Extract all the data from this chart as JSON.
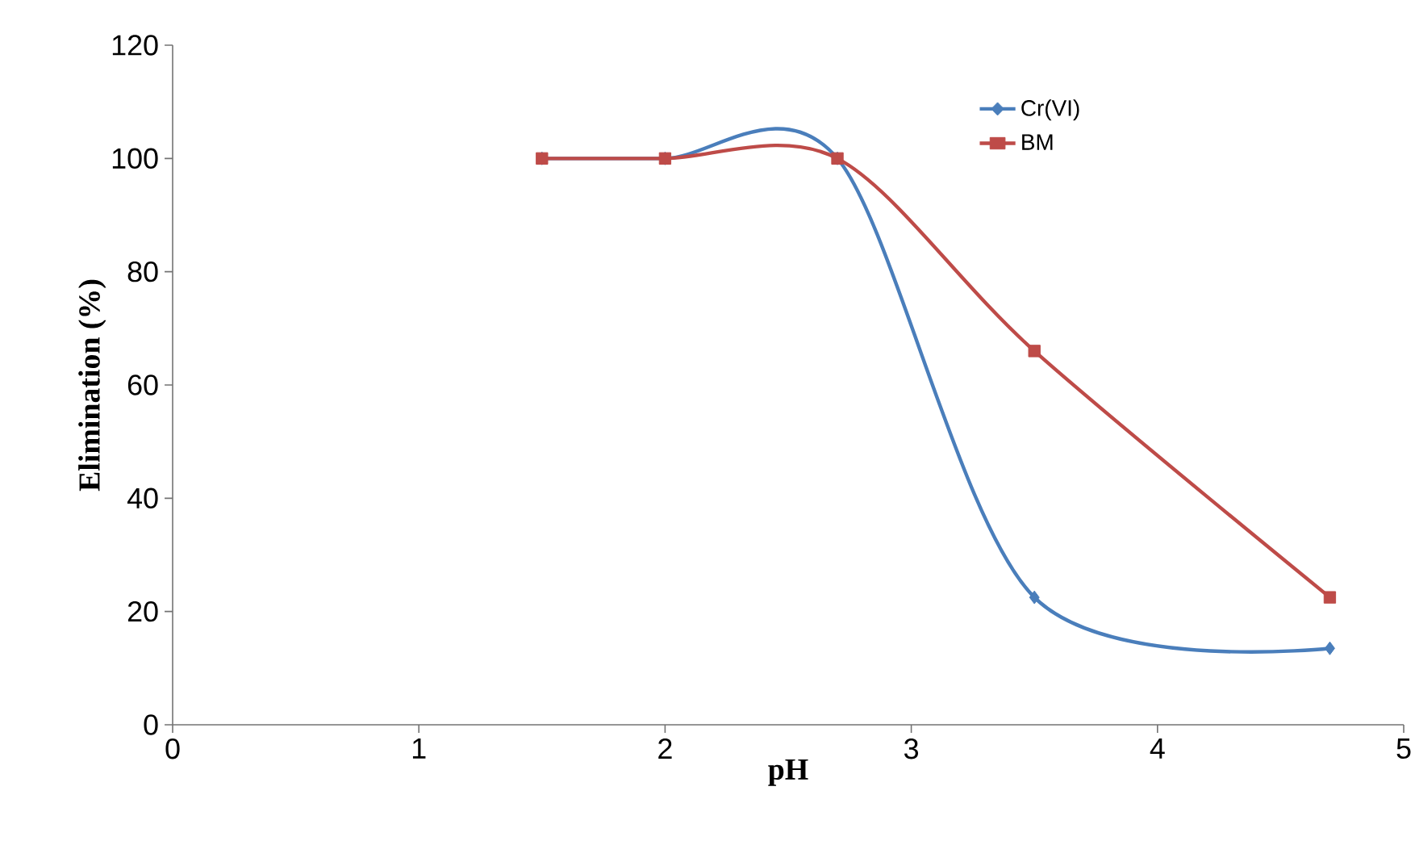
{
  "chart_data": {
    "type": "line",
    "xlabel": "pH",
    "ylabel": "Elimination (%)",
    "x": [
      1.5,
      2,
      2.7,
      3.5,
      4.7
    ],
    "series": [
      {
        "name": "Cr(VI)",
        "color": "#4a7ebb",
        "marker": "diamond",
        "values": [
          100,
          100,
          100,
          22.5,
          13.5
        ]
      },
      {
        "name": "BM",
        "color": "#be4b48",
        "marker": "square",
        "values": [
          100,
          100,
          100,
          66,
          22.5
        ]
      }
    ],
    "xlim": [
      0,
      5
    ],
    "xticks": [
      0,
      1,
      2,
      3,
      4,
      5
    ],
    "ylim": [
      0,
      120
    ],
    "yticks": [
      0,
      20,
      40,
      60,
      80,
      100,
      120
    ],
    "grid": false,
    "legend": "top right",
    "line_style": "solid"
  }
}
